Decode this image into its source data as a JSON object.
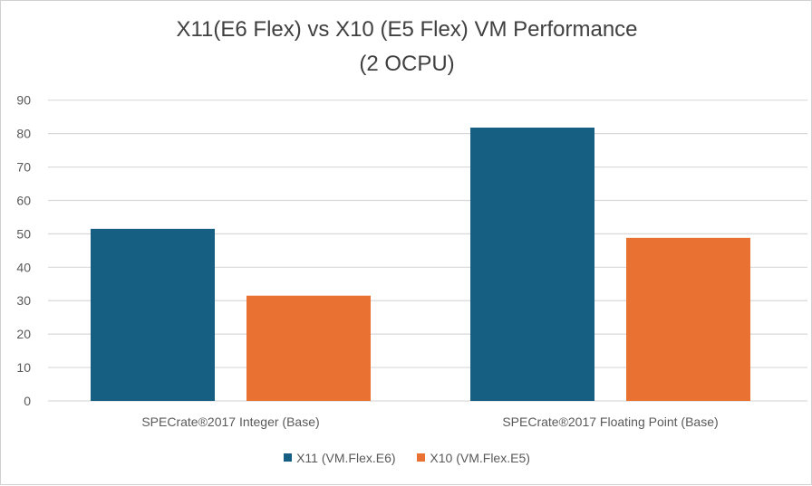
{
  "chart_data": {
    "type": "bar",
    "title": "X11(E6 Flex) vs X10 (E5 Flex) VM Performance",
    "subtitle": "(2 OCPU)",
    "categories": [
      "SPECrate®2017 Integer  (Base)",
      "SPECrate®2017 Floating Point  (Base)"
    ],
    "series": [
      {
        "name": "X11 (VM.Flex.E6)",
        "color": "#175F82",
        "values": [
          51.5,
          81.8
        ]
      },
      {
        "name": "X10 (VM.Flex.E5)",
        "color": "#E97132",
        "values": [
          31.5,
          48.8
        ]
      }
    ],
    "ylim": [
      0,
      90
    ],
    "yticks": [
      0,
      10,
      20,
      30,
      40,
      50,
      60,
      70,
      80,
      90
    ],
    "xlabel": "",
    "ylabel": "",
    "grid": true,
    "legend_position": "bottom"
  }
}
